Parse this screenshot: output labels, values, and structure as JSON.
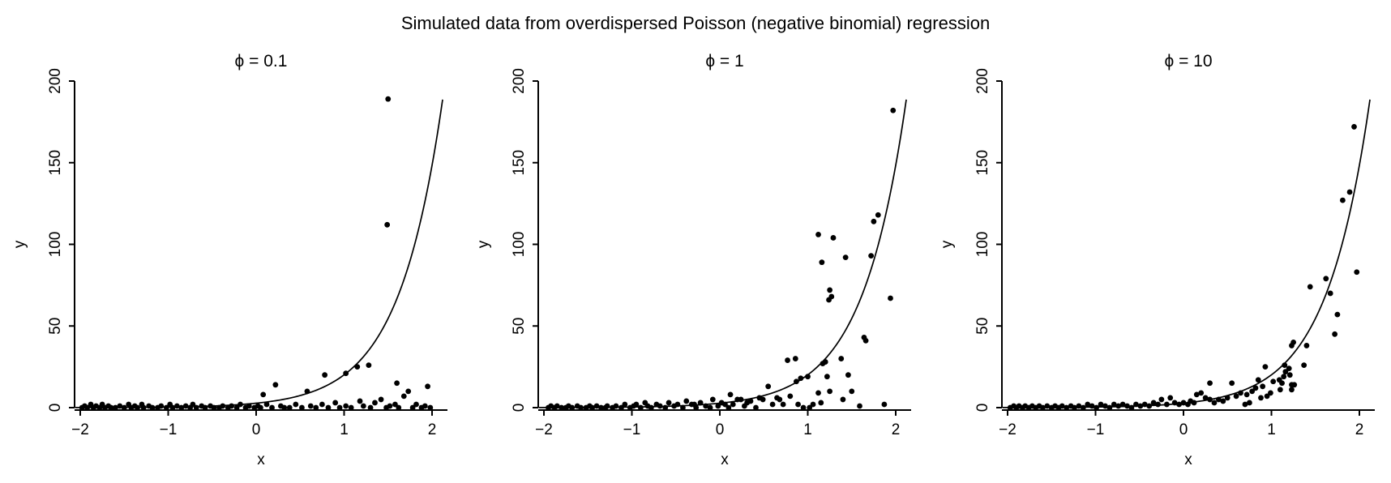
{
  "figure": {
    "title": "Simulated data from overdispersed Poisson (negative binomial) regression",
    "background_color": "#ffffff",
    "foreground_color": "#000000"
  },
  "chart_data": [
    {
      "type": "scatter",
      "subtitle": "ϕ = 0.1",
      "phi": 0.1,
      "xlabel": "x",
      "ylabel": "y",
      "xlim": [
        -2.17,
        2.17
      ],
      "ylim": [
        0,
        200
      ],
      "xticks": [
        -2,
        -1,
        0,
        1,
        2
      ],
      "yticks": [
        0,
        50,
        100,
        150,
        200
      ],
      "grid": false,
      "legend": "none",
      "marker_color": "#000000",
      "curve": {
        "formula": "y = exp(1 + 2x)",
        "a": 1,
        "b": 2,
        "x_from": -2.06,
        "x_to": 2.13,
        "color": "#000000"
      },
      "points": [
        [
          -1.98,
          0
        ],
        [
          -1.95,
          1
        ],
        [
          -1.92,
          0
        ],
        [
          -1.88,
          2
        ],
        [
          -1.85,
          0
        ],
        [
          -1.82,
          1
        ],
        [
          -1.78,
          0
        ],
        [
          -1.75,
          2
        ],
        [
          -1.72,
          0
        ],
        [
          -1.68,
          1
        ],
        [
          -1.65,
          0
        ],
        [
          -1.6,
          0
        ],
        [
          -1.55,
          1
        ],
        [
          -1.5,
          0
        ],
        [
          -1.45,
          2
        ],
        [
          -1.42,
          0
        ],
        [
          -1.38,
          1
        ],
        [
          -1.35,
          0
        ],
        [
          -1.3,
          2
        ],
        [
          -1.28,
          0
        ],
        [
          -1.22,
          1
        ],
        [
          -1.18,
          0
        ],
        [
          -1.12,
          0
        ],
        [
          -1.08,
          1
        ],
        [
          -1.02,
          0
        ],
        [
          -0.98,
          2
        ],
        [
          -0.95,
          0
        ],
        [
          -0.9,
          1
        ],
        [
          -0.85,
          0
        ],
        [
          -0.8,
          1
        ],
        [
          -0.75,
          0
        ],
        [
          -0.72,
          2
        ],
        [
          -0.68,
          0
        ],
        [
          -0.62,
          1
        ],
        [
          -0.58,
          0
        ],
        [
          -0.52,
          1
        ],
        [
          -0.48,
          0
        ],
        [
          -0.42,
          0
        ],
        [
          -0.38,
          1
        ],
        [
          -0.32,
          0
        ],
        [
          -0.28,
          1
        ],
        [
          -0.22,
          0
        ],
        [
          -0.18,
          2
        ],
        [
          -0.12,
          0
        ],
        [
          -0.08,
          1
        ],
        [
          -0.02,
          0
        ],
        [
          0.02,
          1
        ],
        [
          0.05,
          0
        ],
        [
          0.12,
          2
        ],
        [
          0.18,
          0
        ],
        [
          0.28,
          1
        ],
        [
          0.32,
          0
        ],
        [
          0.38,
          0
        ],
        [
          0.45,
          2
        ],
        [
          0.52,
          0
        ],
        [
          0.62,
          1
        ],
        [
          0.68,
          0
        ],
        [
          0.75,
          2
        ],
        [
          0.82,
          0
        ],
        [
          0.9,
          3
        ],
        [
          0.95,
          0
        ],
        [
          1.02,
          1
        ],
        [
          1.08,
          0
        ],
        [
          1.18,
          4
        ],
        [
          1.22,
          1
        ],
        [
          1.3,
          0
        ],
        [
          1.35,
          3
        ],
        [
          1.42,
          5
        ],
        [
          1.48,
          0
        ],
        [
          1.52,
          1
        ],
        [
          1.58,
          2
        ],
        [
          1.62,
          0
        ],
        [
          1.78,
          0
        ],
        [
          1.82,
          2
        ],
        [
          1.88,
          0
        ],
        [
          1.92,
          1
        ],
        [
          1.98,
          0
        ],
        [
          0.08,
          8
        ],
        [
          0.22,
          14
        ],
        [
          0.58,
          10
        ],
        [
          0.78,
          20
        ],
        [
          1.02,
          21
        ],
        [
          1.15,
          25
        ],
        [
          1.28,
          26
        ],
        [
          1.5,
          189
        ],
        [
          1.49,
          112
        ],
        [
          1.6,
          15
        ],
        [
          1.68,
          7
        ],
        [
          1.73,
          10
        ],
        [
          1.95,
          13
        ]
      ]
    },
    {
      "type": "scatter",
      "subtitle": "ϕ = 1",
      "phi": 1,
      "xlabel": "x",
      "ylabel": "y",
      "xlim": [
        -2.17,
        2.17
      ],
      "ylim": [
        0,
        200
      ],
      "xticks": [
        -2,
        -1,
        0,
        1,
        2
      ],
      "yticks": [
        0,
        50,
        100,
        150,
        200
      ],
      "grid": false,
      "legend": "none",
      "marker_color": "#000000",
      "curve": {
        "formula": "y = exp(1 + 2x)",
        "a": 1,
        "b": 2,
        "x_from": -2.06,
        "x_to": 2.13,
        "color": "#000000"
      },
      "points": [
        [
          -1.95,
          0
        ],
        [
          -1.92,
          1
        ],
        [
          -1.88,
          0
        ],
        [
          -1.85,
          1
        ],
        [
          -1.8,
          0
        ],
        [
          -1.75,
          0
        ],
        [
          -1.72,
          1
        ],
        [
          -1.68,
          0
        ],
        [
          -1.62,
          1
        ],
        [
          -1.58,
          0
        ],
        [
          -1.52,
          0
        ],
        [
          -1.48,
          1
        ],
        [
          -1.45,
          0
        ],
        [
          -1.4,
          1
        ],
        [
          -1.35,
          0
        ],
        [
          -1.3,
          0
        ],
        [
          -1.28,
          1
        ],
        [
          -1.22,
          0
        ],
        [
          -1.18,
          1
        ],
        [
          -1.12,
          0
        ],
        [
          -1.08,
          2
        ],
        [
          -1.02,
          0
        ],
        [
          -0.98,
          1
        ],
        [
          -0.95,
          2
        ],
        [
          -0.9,
          0
        ],
        [
          -0.85,
          3
        ],
        [
          -0.82,
          1
        ],
        [
          -0.78,
          0
        ],
        [
          -0.72,
          2
        ],
        [
          -0.68,
          1
        ],
        [
          -0.62,
          0
        ],
        [
          -0.58,
          3
        ],
        [
          -0.52,
          1
        ],
        [
          -0.48,
          2
        ],
        [
          -0.42,
          0
        ],
        [
          -0.38,
          4
        ],
        [
          -0.32,
          2
        ],
        [
          -0.29,
          2
        ],
        [
          -0.27,
          0
        ],
        [
          -0.22,
          3
        ],
        [
          -0.16,
          1
        ],
        [
          -0.11,
          0
        ],
        [
          -0.08,
          5
        ],
        [
          -0.02,
          1
        ],
        [
          0.02,
          3
        ],
        [
          0.06,
          2
        ],
        [
          0.1,
          0
        ],
        [
          0.12,
          8
        ],
        [
          0.15,
          2
        ],
        [
          0.2,
          5
        ],
        [
          0.24,
          5
        ],
        [
          0.28,
          1
        ],
        [
          0.31,
          3
        ],
        [
          0.35,
          4
        ],
        [
          0.41,
          0
        ],
        [
          0.45,
          6
        ],
        [
          0.49,
          5
        ],
        [
          0.55,
          13
        ],
        [
          0.6,
          2
        ],
        [
          0.65,
          6
        ],
        [
          0.68,
          5
        ],
        [
          0.72,
          2
        ],
        [
          0.77,
          29
        ],
        [
          0.8,
          7
        ],
        [
          0.86,
          30
        ],
        [
          0.87,
          16
        ],
        [
          0.89,
          2
        ],
        [
          0.92,
          18
        ],
        [
          0.95,
          0
        ],
        [
          1.0,
          19
        ],
        [
          1.02,
          0
        ],
        [
          1.06,
          2
        ],
        [
          1.12,
          106
        ],
        [
          1.12,
          9
        ],
        [
          1.15,
          3
        ],
        [
          1.16,
          89
        ],
        [
          1.17,
          27
        ],
        [
          1.2,
          28
        ],
        [
          1.22,
          19
        ],
        [
          1.24,
          66
        ],
        [
          1.25,
          72
        ],
        [
          1.25,
          10
        ],
        [
          1.27,
          68
        ],
        [
          1.29,
          104
        ],
        [
          1.38,
          30
        ],
        [
          1.4,
          5
        ],
        [
          1.43,
          92
        ],
        [
          1.46,
          20
        ],
        [
          1.5,
          10
        ],
        [
          1.59,
          1
        ],
        [
          1.64,
          43
        ],
        [
          1.66,
          41
        ],
        [
          1.72,
          93
        ],
        [
          1.75,
          114
        ],
        [
          1.8,
          118
        ],
        [
          1.87,
          2
        ],
        [
          1.94,
          67
        ],
        [
          1.97,
          182
        ]
      ]
    },
    {
      "type": "scatter",
      "subtitle": "ϕ = 10",
      "phi": 10,
      "xlabel": "x",
      "ylabel": "y",
      "xlim": [
        -2.17,
        2.17
      ],
      "ylim": [
        0,
        200
      ],
      "xticks": [
        -2,
        -1,
        0,
        1,
        2
      ],
      "yticks": [
        0,
        50,
        100,
        150,
        200
      ],
      "grid": false,
      "legend": "none",
      "marker_color": "#000000",
      "curve": {
        "formula": "y = exp(1 + 2x)",
        "a": 1,
        "b": 2,
        "x_from": -2.06,
        "x_to": 2.13,
        "color": "#000000"
      },
      "points": [
        [
          -1.97,
          0
        ],
        [
          -1.93,
          1
        ],
        [
          -1.9,
          0
        ],
        [
          -1.87,
          1
        ],
        [
          -1.83,
          0
        ],
        [
          -1.8,
          1
        ],
        [
          -1.76,
          0
        ],
        [
          -1.72,
          1
        ],
        [
          -1.68,
          0
        ],
        [
          -1.64,
          1
        ],
        [
          -1.6,
          0
        ],
        [
          -1.55,
          1
        ],
        [
          -1.5,
          0
        ],
        [
          -1.46,
          1
        ],
        [
          -1.42,
          0
        ],
        [
          -1.38,
          1
        ],
        [
          -1.33,
          0
        ],
        [
          -1.28,
          1
        ],
        [
          -1.24,
          0
        ],
        [
          -1.19,
          1
        ],
        [
          -1.14,
          0
        ],
        [
          -1.09,
          2
        ],
        [
          -1.04,
          1
        ],
        [
          -0.99,
          0
        ],
        [
          -0.94,
          2
        ],
        [
          -0.89,
          1
        ],
        [
          -0.84,
          0
        ],
        [
          -0.79,
          2
        ],
        [
          -0.74,
          1
        ],
        [
          -0.69,
          2
        ],
        [
          -0.64,
          1
        ],
        [
          -0.59,
          0
        ],
        [
          -0.54,
          2
        ],
        [
          -0.49,
          1
        ],
        [
          -0.44,
          2
        ],
        [
          -0.39,
          1
        ],
        [
          -0.34,
          3
        ],
        [
          -0.29,
          2
        ],
        [
          -0.25,
          5
        ],
        [
          -0.19,
          2
        ],
        [
          -0.15,
          6
        ],
        [
          -0.1,
          3
        ],
        [
          -0.05,
          2
        ],
        [
          0.0,
          3
        ],
        [
          0.05,
          2
        ],
        [
          0.08,
          4
        ],
        [
          0.12,
          3
        ],
        [
          0.15,
          8
        ],
        [
          0.2,
          9
        ],
        [
          0.25,
          6
        ],
        [
          0.3,
          5
        ],
        [
          0.3,
          15
        ],
        [
          0.35,
          3
        ],
        [
          0.4,
          5
        ],
        [
          0.45,
          4
        ],
        [
          0.5,
          6
        ],
        [
          0.55,
          15
        ],
        [
          0.6,
          7
        ],
        [
          0.65,
          9
        ],
        [
          0.7,
          2
        ],
        [
          0.72,
          8
        ],
        [
          0.75,
          3
        ],
        [
          0.78,
          10
        ],
        [
          0.82,
          12
        ],
        [
          0.85,
          17
        ],
        [
          0.88,
          6
        ],
        [
          0.9,
          13
        ],
        [
          0.93,
          25
        ],
        [
          0.95,
          7
        ],
        [
          0.99,
          9
        ],
        [
          1.02,
          16
        ],
        [
          1.09,
          17
        ],
        [
          1.1,
          11
        ],
        [
          1.12,
          15
        ],
        [
          1.14,
          19
        ],
        [
          1.15,
          26
        ],
        [
          1.16,
          22
        ],
        [
          1.2,
          24
        ],
        [
          1.21,
          20
        ],
        [
          1.23,
          38
        ],
        [
          1.23,
          14
        ],
        [
          1.23,
          11
        ],
        [
          1.25,
          40
        ],
        [
          1.26,
          14
        ],
        [
          1.37,
          26
        ],
        [
          1.4,
          38
        ],
        [
          1.44,
          74
        ],
        [
          1.62,
          79
        ],
        [
          1.67,
          70
        ],
        [
          1.72,
          45
        ],
        [
          1.75,
          57
        ],
        [
          1.81,
          127
        ],
        [
          1.89,
          132
        ],
        [
          1.94,
          172
        ],
        [
          1.97,
          83
        ]
      ]
    }
  ]
}
